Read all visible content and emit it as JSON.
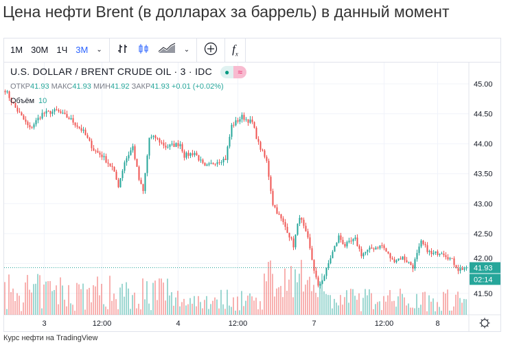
{
  "title": "Цена нефти Brent (в долларах за баррель) в данный момент",
  "toolbar": {
    "intervals": [
      "1М",
      "30М",
      "1Ч",
      "3М"
    ],
    "active_interval": "3М",
    "icons": [
      "chevron-down-icon",
      "bar-chart-icon",
      "candles-icon",
      "area-chart-icon",
      "chevron-down-icon",
      "plus-circle-icon",
      "fx-icon"
    ]
  },
  "legend": {
    "symbol": "U.S. DOLLAR / BRENT CRUDE OIL · 3 · IDC",
    "open_label": "ОТКР",
    "open": "41.93",
    "high_label": "МАКС",
    "high": "41.93",
    "low_label": "МИН",
    "low": "41.92",
    "close_label": "ЗАКР",
    "close": "41.93",
    "change": "+0.01 (+0.02%)",
    "volume_label": "Объём",
    "volume": "10",
    "status_dot": "●",
    "status_icon": "≈"
  },
  "footer": "Курс нефти на TradingView",
  "colors": {
    "up": "#26a69a",
    "down": "#ef5350",
    "accent": "#2962ff"
  },
  "chart_data": {
    "type": "candlestick",
    "ylim": [
      41.2,
      45.15
    ],
    "yticks": [
      "45.00",
      "44.50",
      "44.00",
      "43.50",
      "43.00",
      "42.50",
      "42.00",
      "41.50"
    ],
    "xticks": [
      {
        "label": "3",
        "bar": 19
      },
      {
        "label": "12:00",
        "bar": 47
      },
      {
        "label": "4",
        "bar": 84
      },
      {
        "label": "12:00",
        "bar": 113
      },
      {
        "label": "7",
        "bar": 150
      },
      {
        "label": "12:00",
        "bar": 184
      },
      {
        "label": "8",
        "bar": 210
      }
    ],
    "bars": 225,
    "close_path": [
      [
        0,
        44.9
      ],
      [
        5,
        44.6
      ],
      [
        12,
        44.25
      ],
      [
        18,
        44.5
      ],
      [
        25,
        44.55
      ],
      [
        32,
        44.4
      ],
      [
        38,
        44.2
      ],
      [
        43,
        43.9
      ],
      [
        47,
        43.8
      ],
      [
        52,
        43.6
      ],
      [
        55,
        43.3
      ],
      [
        58,
        43.7
      ],
      [
        62,
        43.95
      ],
      [
        65,
        43.4
      ],
      [
        67,
        43.2
      ],
      [
        70,
        44.1
      ],
      [
        73,
        44.1
      ],
      [
        78,
        43.95
      ],
      [
        85,
        44.0
      ],
      [
        87,
        43.8
      ],
      [
        92,
        43.85
      ],
      [
        97,
        43.6
      ],
      [
        102,
        43.7
      ],
      [
        107,
        43.75
      ],
      [
        110,
        44.3
      ],
      [
        115,
        44.45
      ],
      [
        120,
        44.35
      ],
      [
        123,
        44.0
      ],
      [
        127,
        43.7
      ],
      [
        130,
        43.0
      ],
      [
        133,
        42.8
      ],
      [
        137,
        42.55
      ],
      [
        140,
        42.3
      ],
      [
        143,
        42.8
      ],
      [
        147,
        42.4
      ],
      [
        150,
        41.9
      ],
      [
        152,
        41.6
      ],
      [
        155,
        41.8
      ],
      [
        158,
        42.1
      ],
      [
        162,
        42.45
      ],
      [
        165,
        42.3
      ],
      [
        170,
        42.4
      ],
      [
        173,
        42.15
      ],
      [
        178,
        42.25
      ],
      [
        183,
        42.3
      ],
      [
        188,
        42.05
      ],
      [
        193,
        42.1
      ],
      [
        198,
        41.95
      ],
      [
        202,
        42.35
      ],
      [
        207,
        42.15
      ],
      [
        212,
        42.2
      ],
      [
        217,
        42.05
      ],
      [
        220,
        41.9
      ],
      [
        224,
        41.93
      ]
    ],
    "last_price": "41.93",
    "countdown": "02:14"
  }
}
